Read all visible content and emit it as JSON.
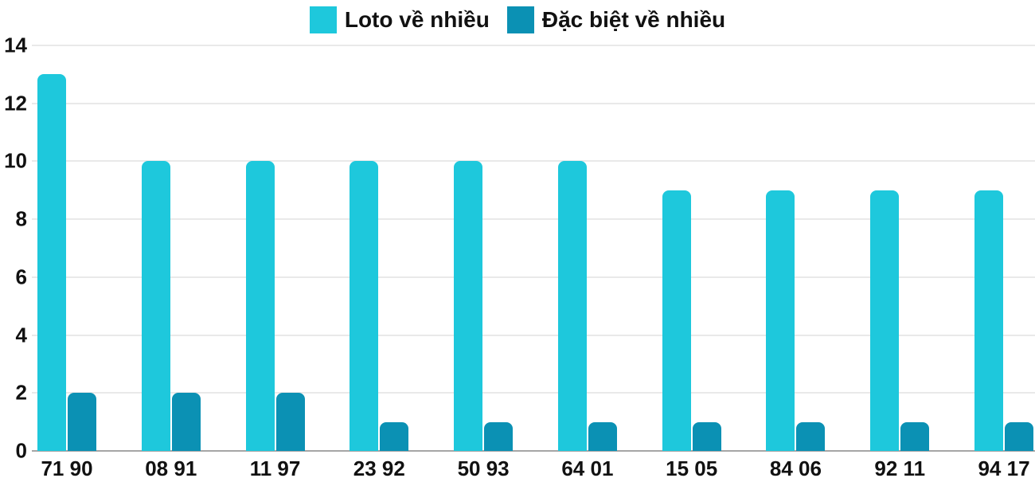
{
  "chart_data": {
    "type": "bar",
    "title": "",
    "categories": [
      "71 90",
      "08 91",
      "11 97",
      "23 92",
      "50 93",
      "64 01",
      "15 05",
      "84 06",
      "92 11",
      "94 17"
    ],
    "series": [
      {
        "name": "Loto về nhiều",
        "color": "#1ec8dc",
        "values": [
          13,
          10,
          10,
          10,
          10,
          10,
          9,
          9,
          9,
          9
        ]
      },
      {
        "name": "Đặc biệt về nhiều",
        "color": "#0b91b4",
        "values": [
          2,
          2,
          2,
          1,
          1,
          1,
          1,
          1,
          1,
          1
        ]
      }
    ],
    "ylim": [
      0,
      14
    ],
    "yticks": [
      0,
      2,
      4,
      6,
      8,
      10,
      12,
      14
    ],
    "grid": true,
    "legend_position": "top-center",
    "xlabel": "",
    "ylabel": ""
  },
  "style": {
    "background": "#ffffff",
    "grid_color": "#e9e9e9",
    "baseline_color": "#a6a6a6",
    "text_color": "#111111"
  }
}
